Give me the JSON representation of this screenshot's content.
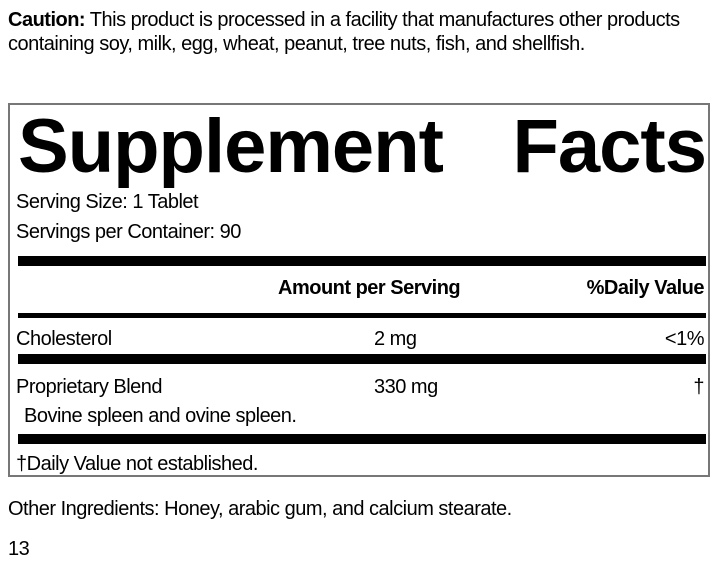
{
  "caution": {
    "label": "Caution:",
    "text": " This product is processed in a facility that manufactures other products containing soy, milk, egg, wheat, peanut, tree nuts, fish, and shellfish."
  },
  "facts": {
    "title_word1": "Supplement",
    "title_word2": "Facts",
    "serving_size": "Serving Size: 1 Tablet",
    "servings_per_container": "Servings per Container: 90",
    "header_amount": "Amount per Serving",
    "header_dv": "%Daily Value",
    "rows": [
      {
        "name": "Cholesterol",
        "amount": "2 mg",
        "dv": "<1%"
      },
      {
        "name": "Proprietary Blend",
        "amount": "330 mg",
        "dv": "†",
        "sub": "Bovine spleen and ovine spleen."
      }
    ],
    "footnote": "†Daily Value not established."
  },
  "other_ingredients": "Other Ingredients: Honey, arabic gum, and calcium stearate.",
  "page_number": "13"
}
